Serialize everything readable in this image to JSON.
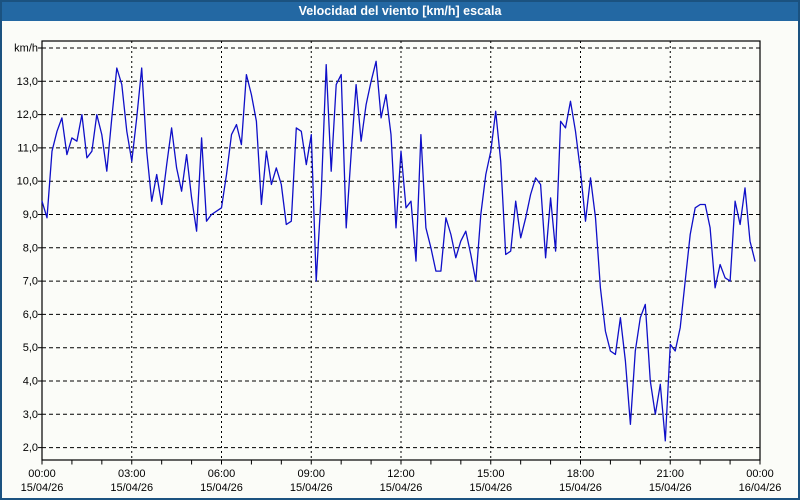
{
  "window": {
    "title": "Velocidad del viento [km/h] escala"
  },
  "colors": {
    "titlebar_bg": "#2368A3",
    "window_border": "#1B5280",
    "page_bg": "#FBFCF8",
    "line_color": "#0F0FC8",
    "grid_color": "#000000",
    "label_color": "#000000"
  },
  "axes": {
    "y_unit_label": "km/h",
    "y_tick_labels": [
      "13,0",
      "12,0",
      "11,0",
      "10,0",
      "9,0",
      "8,0",
      "7,0",
      "6,0",
      "5,0",
      "4,0",
      "3,0",
      "2,0"
    ],
    "y_tick_values": [
      13,
      12,
      11,
      10,
      9,
      8,
      7,
      6,
      5,
      4,
      3,
      2
    ],
    "y_top_gridline_value": 14,
    "x_tick_hours": [
      0,
      3,
      6,
      9,
      12,
      15,
      18,
      21,
      24
    ],
    "x_tick_times": [
      "00:00",
      "03:00",
      "06:00",
      "09:00",
      "12:00",
      "15:00",
      "18:00",
      "21:00",
      "00:00"
    ],
    "x_tick_dates": [
      "15/04/26",
      "15/04/26",
      "15/04/26",
      "15/04/26",
      "15/04/26",
      "15/04/26",
      "15/04/26",
      "15/04/26",
      "16/04/26"
    ]
  },
  "chart_data": {
    "type": "line",
    "title": "Velocidad del viento [km/h] escala",
    "ylabel": "km/h",
    "xlabel": "",
    "ylim": [
      1.4,
      14.2
    ],
    "y_gridlines": [
      2,
      3,
      4,
      5,
      6,
      7,
      8,
      9,
      10,
      11,
      12,
      13,
      14
    ],
    "x_range_hours": [
      0,
      24
    ],
    "x_gridlines_every_hours": 3,
    "minor_ticks_every_hours": 1,
    "grid": "dashed",
    "legend": "none",
    "series_name": "Velocidad del viento",
    "start_label": "15/04/26 00:00",
    "end_label": "16/04/26 00:00",
    "sample_interval_minutes": 10,
    "values": [
      9.4,
      8.9,
      10.9,
      11.5,
      11.9,
      10.8,
      11.3,
      11.2,
      12.0,
      10.7,
      10.9,
      12.0,
      11.4,
      10.3,
      11.9,
      13.4,
      12.9,
      11.5,
      10.6,
      11.9,
      13.4,
      10.9,
      9.4,
      10.2,
      9.3,
      10.5,
      11.6,
      10.4,
      9.7,
      10.8,
      9.5,
      8.5,
      11.3,
      8.8,
      9.0,
      9.1,
      9.2,
      10.2,
      11.4,
      11.7,
      11.1,
      13.2,
      12.6,
      11.8,
      9.3,
      10.9,
      9.9,
      10.4,
      9.9,
      8.7,
      8.8,
      11.6,
      11.5,
      10.5,
      11.4,
      7.0,
      9.6,
      13.5,
      10.3,
      12.9,
      13.2,
      8.6,
      10.8,
      12.9,
      11.2,
      12.3,
      13.0,
      13.6,
      11.9,
      12.6,
      11.4,
      8.6,
      10.9,
      9.2,
      9.4,
      7.6,
      11.4,
      8.6,
      8.0,
      7.3,
      7.3,
      8.9,
      8.4,
      7.7,
      8.2,
      8.5,
      7.8,
      7.0,
      9.0,
      10.2,
      10.9,
      12.1,
      10.6,
      7.8,
      7.9,
      9.4,
      8.3,
      8.9,
      9.6,
      10.1,
      9.9,
      7.7,
      9.5,
      7.9,
      11.8,
      11.6,
      12.4,
      11.5,
      10.3,
      8.8,
      10.1,
      8.9,
      6.8,
      5.5,
      4.9,
      4.8,
      5.9,
      4.6,
      2.7,
      4.9,
      5.9,
      6.3,
      4.0,
      3.0,
      3.9,
      2.2,
      5.1,
      4.9,
      5.6,
      7.0,
      8.4,
      9.2,
      9.3,
      9.3,
      8.6,
      6.8,
      7.5,
      7.1,
      7.0,
      9.4,
      8.7,
      9.8,
      8.2,
      7.6
    ]
  }
}
